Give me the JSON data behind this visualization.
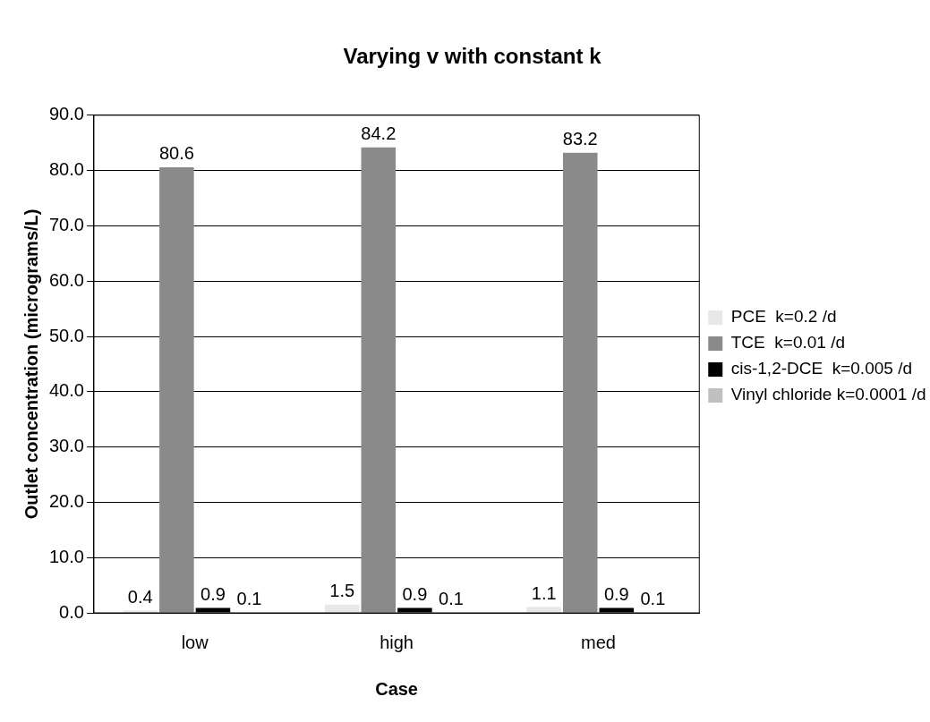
{
  "chart_data": {
    "type": "bar",
    "title": "Varying v with constant k",
    "xlabel": "Case",
    "ylabel": "Outlet concentration (micrograms/L)",
    "categories": [
      "low",
      "high",
      "med"
    ],
    "series": [
      {
        "name": "PCE  k=0.2 /d",
        "color": "#e8e8e8",
        "values": [
          0.4,
          1.5,
          1.1
        ]
      },
      {
        "name": "TCE  k=0.01 /d",
        "color": "#8a8a8a",
        "values": [
          80.6,
          84.2,
          83.2
        ]
      },
      {
        "name": "cis-1,2-DCE  k=0.005 /d",
        "color": "#000000",
        "values": [
          0.9,
          0.9,
          0.9
        ]
      },
      {
        "name": "Vinyl chloride k=0.0001 /d",
        "color": "#c0c0c0",
        "values": [
          0.1,
          0.1,
          0.1
        ]
      }
    ],
    "ylim": [
      0,
      90
    ],
    "yticks": [
      {
        "value": 0,
        "label": "0.0"
      },
      {
        "value": 10,
        "label": "10.0"
      },
      {
        "value": 20,
        "label": "20.0"
      },
      {
        "value": 30,
        "label": "30.0"
      },
      {
        "value": 40,
        "label": "40.0"
      },
      {
        "value": 50,
        "label": "50.0"
      },
      {
        "value": 60,
        "label": "60.0"
      },
      {
        "value": 70,
        "label": "70.0"
      },
      {
        "value": 80,
        "label": "80.0"
      },
      {
        "value": 90,
        "label": "90.0"
      }
    ],
    "grid": "y",
    "legend": "right",
    "data_labels": true
  }
}
